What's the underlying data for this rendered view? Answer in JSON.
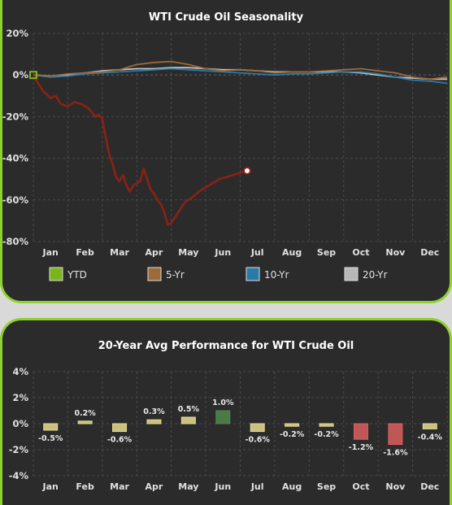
{
  "chart_data": [
    {
      "type": "line",
      "title": "WTI Crude Oil Seasonality",
      "x_axis_months": [
        "Jan",
        "Feb",
        "Mar",
        "Apr",
        "May",
        "Jun",
        "Jul",
        "Aug",
        "Sep",
        "Oct",
        "Nov",
        "Dec"
      ],
      "y_ticks": [
        "20%",
        "0%",
        "-20%",
        "-40%",
        "-60%",
        "-80%"
      ],
      "ylim": [
        -80,
        20
      ],
      "y_unit": "%",
      "grid": true,
      "legend_position": "bottom",
      "series": [
        {
          "name": "YTD",
          "color": "#8b2212",
          "marker_color": "#7ab51d",
          "x": [
            0,
            0.1,
            0.3,
            0.5,
            0.65,
            0.8,
            1,
            1.2,
            1.4,
            1.6,
            1.8,
            1.9,
            2,
            2.1,
            2.2,
            2.3,
            2.4,
            2.5,
            2.6,
            2.7,
            2.8,
            2.9,
            3,
            3.1,
            3.2,
            3.3,
            3.4,
            3.5,
            3.6,
            3.7,
            3.8,
            3.9,
            4,
            4.2,
            4.4,
            4.6,
            4.8,
            5,
            5.2,
            5.4,
            5.6,
            5.8,
            6,
            6.2
          ],
          "values": [
            0,
            -3,
            -8,
            -11,
            -10,
            -14,
            -15,
            -13,
            -14,
            -16,
            -20,
            -19,
            -21,
            -30,
            -38,
            -43,
            -49,
            -51,
            -48,
            -53,
            -56,
            -53,
            -52,
            -51,
            -45,
            -50,
            -55,
            -57,
            -60,
            -62,
            -66,
            -72,
            -71,
            -66,
            -61,
            -59,
            -56,
            -54,
            -52,
            -50,
            -49,
            -48,
            -47,
            -46
          ]
        },
        {
          "name": "5-Yr",
          "color": "#9c6a3c",
          "x": [
            0,
            0.5,
            1,
            1.5,
            2,
            2.5,
            3,
            3.5,
            4,
            4.5,
            5,
            5.5,
            6,
            6.5,
            7,
            7.5,
            8,
            8.5,
            9,
            9.5,
            10,
            10.5,
            11,
            11.5,
            12
          ],
          "values": [
            0,
            -0.5,
            0.5,
            1,
            1.5,
            2.5,
            5,
            6,
            6.5,
            5,
            3,
            2,
            2.5,
            2,
            1,
            1.5,
            1.5,
            2,
            2.5,
            3,
            2,
            1,
            -1,
            -2,
            -1
          ]
        },
        {
          "name": "10-Yr",
          "color": "#2a7aa8",
          "x": [
            0,
            0.5,
            1,
            1.5,
            2,
            2.5,
            3,
            3.5,
            4,
            4.5,
            5,
            5.5,
            6,
            6.5,
            7,
            7.5,
            8,
            8.5,
            9,
            9.5,
            10,
            10.5,
            11,
            11.5,
            12
          ],
          "values": [
            0,
            -1,
            -0.5,
            0.5,
            1,
            1.5,
            2,
            2.5,
            3,
            2.5,
            2,
            1.5,
            1,
            0.5,
            0,
            0.5,
            0.5,
            1,
            1.5,
            1.5,
            0.5,
            -1,
            -2.5,
            -3,
            -4
          ]
        },
        {
          "name": "20-Yr",
          "color": "#c4c4c4",
          "x": [
            0,
            0.5,
            1,
            1.5,
            2,
            2.5,
            3,
            3.5,
            4,
            4.5,
            5,
            5.5,
            6,
            6.5,
            7,
            7.5,
            8,
            8.5,
            9,
            9.5,
            10,
            10.5,
            11,
            11.5,
            12
          ],
          "values": [
            0,
            -0.5,
            0,
            1,
            2,
            2.5,
            3,
            3,
            3.5,
            3.5,
            3,
            2.5,
            2.5,
            2,
            1.5,
            1.5,
            1.5,
            1.5,
            1.5,
            1,
            0,
            -1,
            -1.5,
            -2,
            -2
          ]
        }
      ]
    },
    {
      "type": "bar",
      "title": "20-Year Avg Performance for WTI Crude Oil",
      "categories": [
        "Jan",
        "Feb",
        "Mar",
        "Apr",
        "May",
        "Jun",
        "Jul",
        "Aug",
        "Sep",
        "Oct",
        "Nov",
        "Dec"
      ],
      "values": [
        -0.5,
        0.2,
        -0.6,
        0.3,
        0.5,
        1.0,
        -0.6,
        -0.2,
        -0.2,
        -1.2,
        -1.6,
        -0.4
      ],
      "value_labels": [
        "-0.5%",
        "0.2%",
        "-0.6%",
        "0.3%",
        "0.5%",
        "1.0%",
        "-0.6%",
        "-0.2%",
        "-0.2%",
        "-1.2%",
        "-1.6%",
        "-0.4%"
      ],
      "y_ticks": [
        "4%",
        "2%",
        "0%",
        "-2%",
        "-4%"
      ],
      "ylim": [
        -4,
        4
      ],
      "grid": true,
      "colors": {
        "small": "#e6db8f",
        "positive": "#4f8a4f",
        "negative": "#d95f5f"
      }
    }
  ]
}
